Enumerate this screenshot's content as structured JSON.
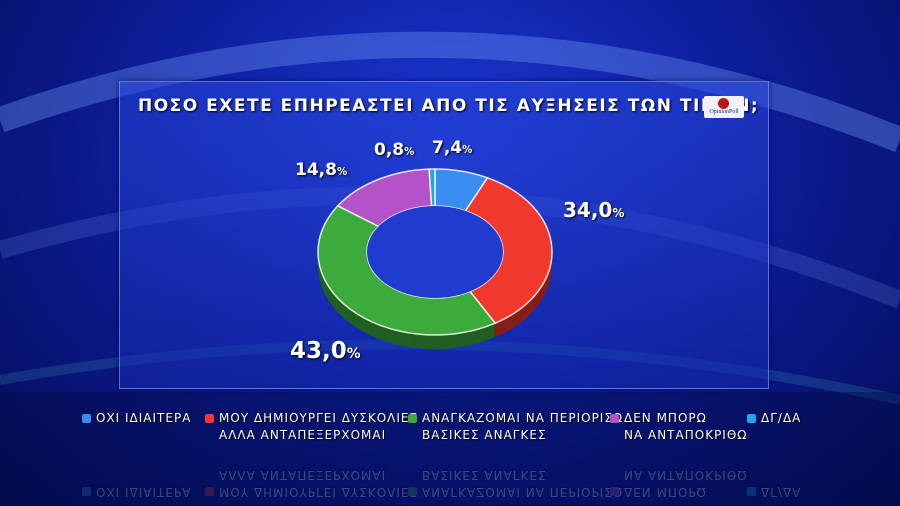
{
  "title": "ΠΟΣΟ ΕΧΕΤΕ ΕΠΗΡΕΑΣΤΕΙ ΑΠΟ ΤΙΣ ΑΥΞΗΣΕΙΣ ΤΩΝ ΤΙΜΩΝ;",
  "logo_text": "OpinionPoll",
  "colors": {
    "background": "#0d1f9e",
    "panel": "#2846dc"
  },
  "chart_data": {
    "type": "pie",
    "variant": "donut",
    "title": "ΠΟΣΟ ΕΧΕΤΕ ΕΠΗΡΕΑΣΤΕΙ ΑΠΟ ΤΙΣ ΑΥΞΗΣΕΙΣ ΤΩΝ ΤΙΜΩΝ;",
    "unit": "%",
    "slices": [
      {
        "label": "ΟΧΙ ΙΔΙΑΙΤΕΡΑ",
        "value": 7.4,
        "display": "7,4",
        "color": "#3a8df0"
      },
      {
        "label": "ΜΟΥ ΔΗΜΙΟΥΡΓΕΙ ΔΥΣΚΟΛΙΕΣ\nΑΛΛΑ ΑΝΤΑΠΕΞΕΡΧΟΜΑΙ",
        "value": 34.0,
        "display": "34,0",
        "color": "#f0392c"
      },
      {
        "label": "ΑΝΑΓΚΑΖΟΜΑΙ ΝΑ ΠΕΡΙΟΡΙΣΩ\nΒΑΣΙΚΕΣ ΑΝΑΓΚΕΣ",
        "value": 43.0,
        "display": "43,0",
        "color": "#3cab3c"
      },
      {
        "label": "ΔΕΝ ΜΠΟΡΩ\nΝΑ ΑΝΤΑΠΟΚΡΙΘΩ",
        "value": 14.8,
        "display": "14,8",
        "color": "#b453c8"
      },
      {
        "label": "ΔΓ/ΔΑ",
        "value": 0.8,
        "display": "0,8",
        "color": "#1fa8e0"
      }
    ],
    "legend_position": "bottom"
  }
}
